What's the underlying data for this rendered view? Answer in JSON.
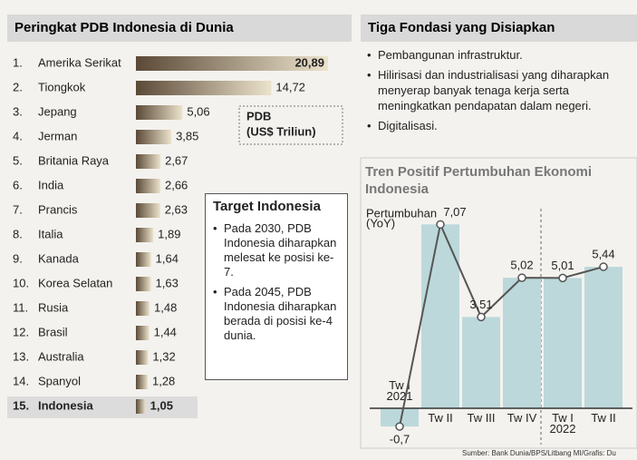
{
  "chart_data": [
    {
      "type": "hbar",
      "title": "Peringkat PDB Indonesia di Dunia",
      "ranks": [
        "1.",
        "2.",
        "3.",
        "4.",
        "5.",
        "6.",
        "7.",
        "8.",
        "9.",
        "10.",
        "11.",
        "12.",
        "13.",
        "14.",
        "15."
      ],
      "categories": [
        "Amerika Serikat",
        "Tiongkok",
        "Jepang",
        "Jerman",
        "Britania Raya",
        "India",
        "Prancis",
        "Italia",
        "Kanada",
        "Korea Selatan",
        "Rusia",
        "Brasil",
        "Australia",
        "Spanyol",
        "Indonesia"
      ],
      "values": [
        20.89,
        14.72,
        5.06,
        3.85,
        2.67,
        2.66,
        2.63,
        1.89,
        1.64,
        1.63,
        1.48,
        1.44,
        1.32,
        1.28,
        1.05
      ],
      "value_labels": [
        "20,89",
        "14,72",
        "5,06",
        "3,85",
        "2,67",
        "2,66",
        "2,63",
        "1,89",
        "1,64",
        "1,63",
        "1,48",
        "1,44",
        "1,32",
        "1,28",
        "1,05"
      ],
      "unit_note": [
        "PDB",
        "(US$ Triliun)"
      ],
      "xlim": [
        0,
        21
      ],
      "color": "#6b5a45"
    },
    {
      "type": "bar-line",
      "title": "Tren Positif Pertumbuhan Ekonomi Indonesia",
      "ylabel": [
        "Pertumbuhan",
        "(YoY)"
      ],
      "categories": [
        "Tw I\n2021",
        "Tw II",
        "Tw III",
        "Tw IV",
        "Tw I\n2022",
        "Tw II"
      ],
      "values": [
        -0.7,
        7.07,
        3.51,
        5.02,
        5.01,
        5.44
      ],
      "value_labels": [
        "-0,7",
        "7,07",
        "3,51",
        "5,02",
        "5,01",
        "5,44"
      ],
      "ylim": [
        -1.5,
        7.5
      ],
      "color": "#bcd8da",
      "line_color": "#555555"
    }
  ],
  "fondasi": {
    "title": "Tiga Fondasi yang Disiapkan",
    "items": [
      "Pembangunan infrastruktur.",
      "Hilirisasi dan industrialisasi yang diharapkan menyerap banyak tenaga kerja serta meningkatkan pendapatan dalam negeri.",
      "Digitalisasi."
    ]
  },
  "target": {
    "title": "Target Indonesia",
    "items": [
      "Pada 2030, PDB Indonesia diharapkan melesat ke posisi ke-7.",
      "Pada 2045, PDB Indonesia diharapkan berada di posisi ke-4 dunia."
    ]
  },
  "source": "Sumber: Bank Dunia/BPS/Litbang MI/Grafis: Du"
}
